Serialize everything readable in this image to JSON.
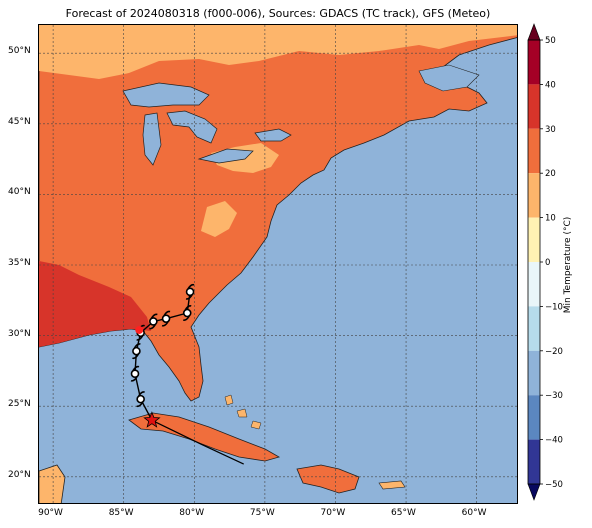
{
  "title": "Forecast of 2024080318 (f000-006), Sources: GDACS (TC track), GFS (Meteo)",
  "map": {
    "lon_range": [
      -91.0,
      -57.0
    ],
    "lat_range": [
      18.0,
      52.0
    ],
    "lon_ticks": [
      {
        "lon": -90,
        "label": "90°W"
      },
      {
        "lon": -85,
        "label": "85°W"
      },
      {
        "lon": -80,
        "label": "80°W"
      },
      {
        "lon": -75,
        "label": "75°W"
      },
      {
        "lon": -70,
        "label": "70°W"
      },
      {
        "lon": -65,
        "label": "65°W"
      },
      {
        "lon": -60,
        "label": "60°W"
      }
    ],
    "lat_ticks": [
      {
        "lat": 20,
        "label": "20°N"
      },
      {
        "lat": 25,
        "label": "25°N"
      },
      {
        "lat": 30,
        "label": "30°N"
      },
      {
        "lat": 35,
        "label": "35°N"
      },
      {
        "lat": 40,
        "label": "40°N"
      },
      {
        "lat": 45,
        "label": "45°N"
      },
      {
        "lat": 50,
        "label": "50°N"
      }
    ],
    "gridlines": true,
    "colors": {
      "ocean": "#8fb3d9",
      "land_20_30": "#f06e3c",
      "land_10_20": "#fdb56b",
      "land_30_40": "#d7342a"
    }
  },
  "colorbar": {
    "label": "Min Temperature (°C)",
    "ticks": [
      "50",
      "40",
      "30",
      "20",
      "10",
      "0",
      "−10",
      "−20",
      "−30",
      "−40",
      "−50"
    ],
    "bins": [
      {
        "from": 40,
        "to": 50,
        "color": "#a50026"
      },
      {
        "from": 30,
        "to": 40,
        "color": "#d7342a"
      },
      {
        "from": 20,
        "to": 30,
        "color": "#f06e3c"
      },
      {
        "from": 10,
        "to": 20,
        "color": "#fdb56b"
      },
      {
        "from": 0,
        "to": 10,
        "color": "#fff2b3"
      },
      {
        "from": -10,
        "to": 0,
        "color": "#e9f6f9"
      },
      {
        "from": -20,
        "to": -10,
        "color": "#b6dceb"
      },
      {
        "from": -30,
        "to": -20,
        "color": "#8fb3d9"
      },
      {
        "from": -40,
        "to": -30,
        "color": "#5b87c0"
      },
      {
        "from": -50,
        "to": -40,
        "color": "#313695"
      }
    ],
    "extend_top_color": "#67001f",
    "extend_bottom_color": "#08085e"
  },
  "track": {
    "points": [
      {
        "lon": -83.0,
        "lat": 24.0
      },
      {
        "lon": -83.8,
        "lat": 25.5
      },
      {
        "lon": -84.2,
        "lat": 27.3
      },
      {
        "lon": -84.1,
        "lat": 28.9
      },
      {
        "lon": -83.8,
        "lat": 30.2
      },
      {
        "lon": -82.9,
        "lat": 31.0
      },
      {
        "lon": -82.0,
        "lat": 31.2
      },
      {
        "lon": -80.5,
        "lat": 31.6
      },
      {
        "lon": -80.3,
        "lat": 33.1
      }
    ],
    "origin": [
      {
        "lon": -83.0,
        "lat": 24.0
      },
      {
        "lon": -79.5,
        "lat": 22.3
      },
      {
        "lon": -76.5,
        "lat": 20.9
      }
    ],
    "start_marker": {
      "lon": -83.0,
      "lat": 24.0
    },
    "red_marker": {
      "lon": -83.9,
      "lat": 30.4
    }
  }
}
